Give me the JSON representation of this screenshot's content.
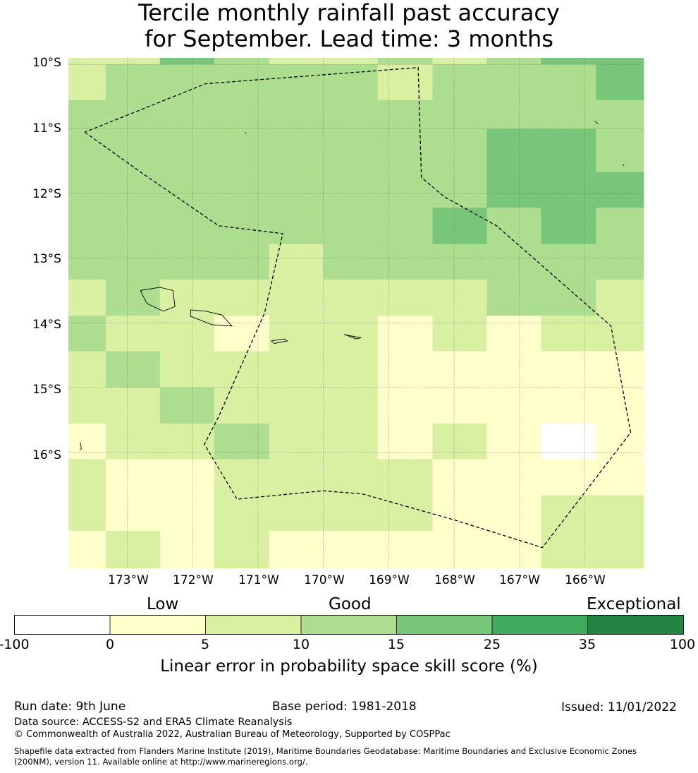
{
  "title": {
    "line1": "Tercile monthly rainfall past accuracy",
    "line2": "for September. Lead time: 3 months"
  },
  "map": {
    "lat_labels": [
      "10°S",
      "11°S",
      "12°S",
      "13°S",
      "14°S",
      "15°S",
      "16°S"
    ],
    "lon_labels": [
      "173°W",
      "172°W",
      "171°W",
      "170°W",
      "169°W",
      "168°W",
      "167°W",
      "166°W"
    ],
    "extent": {
      "lon_min": -173.9,
      "lon_max": -165.1,
      "lat_min": -17.8,
      "lat_max": -9.9
    },
    "grid": {
      "lon_edges": [
        -173.9,
        -173.33,
        -172.5,
        -171.67,
        -170.83,
        -170.0,
        -169.17,
        -168.33,
        -167.5,
        -166.67,
        -165.83,
        -165.1
      ],
      "lat_edges": [
        -9.9,
        -10.0,
        -10.55,
        -11.0,
        -11.67,
        -12.22,
        -12.78,
        -13.33,
        -13.89,
        -14.44,
        -15.0,
        -15.56,
        -16.11,
        -16.67,
        -17.22,
        -17.8
      ],
      "color_classes": [
        [
          2,
          2,
          4,
          3,
          2,
          2,
          3,
          2,
          3,
          4,
          4
        ],
        [
          2,
          3,
          3,
          3,
          3,
          3,
          2,
          3,
          3,
          3,
          4
        ],
        [
          3,
          3,
          3,
          3,
          3,
          3,
          3,
          3,
          3,
          3,
          3
        ],
        [
          3,
          3,
          3,
          3,
          3,
          3,
          3,
          3,
          4,
          4,
          3
        ],
        [
          3,
          3,
          3,
          3,
          3,
          3,
          3,
          3,
          4,
          4,
          4
        ],
        [
          3,
          3,
          3,
          3,
          3,
          3,
          3,
          4,
          3,
          4,
          3
        ],
        [
          3,
          3,
          3,
          3,
          2,
          3,
          3,
          3,
          3,
          3,
          3
        ],
        [
          2,
          3,
          2,
          2,
          2,
          2,
          2,
          2,
          3,
          3,
          2
        ],
        [
          3,
          2,
          2,
          1,
          2,
          2,
          1,
          2,
          1,
          2,
          2
        ],
        [
          2,
          3,
          2,
          2,
          2,
          2,
          1,
          1,
          1,
          1,
          1
        ],
        [
          2,
          2,
          3,
          2,
          2,
          2,
          1,
          1,
          1,
          1,
          1
        ],
        [
          1,
          2,
          2,
          3,
          2,
          2,
          1,
          2,
          1,
          0,
          1
        ],
        [
          2,
          1,
          1,
          2,
          2,
          2,
          2,
          1,
          1,
          1,
          1
        ],
        [
          2,
          1,
          1,
          2,
          2,
          2,
          2,
          1,
          1,
          2,
          2
        ],
        [
          1,
          2,
          1,
          2,
          1,
          1,
          1,
          1,
          1,
          2,
          2
        ]
      ]
    },
    "eez_boundary": [
      [
        -173.65,
        -11.05
      ],
      [
        -172.75,
        -11.7
      ],
      [
        -171.6,
        -12.5
      ],
      [
        -170.62,
        -12.62
      ],
      [
        -170.9,
        -13.85
      ],
      [
        -171.6,
        -15.45
      ],
      [
        -171.82,
        -15.88
      ],
      [
        -171.32,
        -16.73
      ],
      [
        -170.0,
        -16.6
      ],
      [
        -169.4,
        -16.65
      ],
      [
        -168.0,
        -17.05
      ],
      [
        -166.65,
        -17.48
      ],
      [
        -165.3,
        -15.7
      ],
      [
        -165.6,
        -14.05
      ],
      [
        -167.35,
        -12.5
      ],
      [
        -168.15,
        -12.05
      ],
      [
        -168.5,
        -11.75
      ],
      [
        -168.55,
        -10.05
      ],
      [
        -171.8,
        -10.3
      ],
      [
        -173.65,
        -11.05
      ]
    ],
    "islands": [
      [
        [
          -172.8,
          -13.5
        ],
        [
          -172.5,
          -13.45
        ],
        [
          -172.3,
          -13.5
        ],
        [
          -172.27,
          -13.75
        ],
        [
          -172.45,
          -13.82
        ],
        [
          -172.7,
          -13.7
        ],
        [
          -172.8,
          -13.5
        ]
      ],
      [
        [
          -172.03,
          -13.8
        ],
        [
          -171.8,
          -13.82
        ],
        [
          -171.55,
          -13.88
        ],
        [
          -171.4,
          -14.05
        ],
        [
          -171.7,
          -14.03
        ],
        [
          -172.03,
          -13.9
        ],
        [
          -172.03,
          -13.8
        ]
      ],
      [
        [
          -170.8,
          -14.28
        ],
        [
          -170.6,
          -14.25
        ],
        [
          -170.55,
          -14.28
        ],
        [
          -170.75,
          -14.32
        ],
        [
          -170.8,
          -14.28
        ]
      ],
      [
        [
          -169.68,
          -14.18
        ],
        [
          -169.6,
          -14.2
        ],
        [
          -169.42,
          -14.23
        ],
        [
          -169.5,
          -14.25
        ],
        [
          -169.68,
          -14.18
        ]
      ],
      [
        [
          -171.2,
          -11.05
        ],
        [
          -171.18,
          -11.07
        ]
      ],
      [
        [
          -165.85,
          -10.88
        ],
        [
          -165.8,
          -10.92
        ]
      ],
      [
        [
          -165.42,
          -11.55
        ],
        [
          -165.4,
          -11.57
        ]
      ],
      [
        [
          -173.72,
          -15.85
        ],
        [
          -173.7,
          -15.95
        ],
        [
          -173.73,
          -15.97
        ]
      ]
    ]
  },
  "colorbar": {
    "colors": [
      "#ffffff",
      "#ffffcc",
      "#d9f0a3",
      "#addd8e",
      "#78c679",
      "#41ab5d",
      "#238443"
    ],
    "ticks": [
      "-100",
      "0",
      "5",
      "10",
      "15",
      "25",
      "35",
      "100"
    ],
    "tiers": [
      "Low",
      "Good",
      "Exceptional"
    ],
    "label": "Linear error in probability space skill score (%)"
  },
  "footer": {
    "run_date": "Run date: 9th June",
    "base_period": "Base period: 1981-2018",
    "issued": "Issued: 11/01/2022",
    "data_source": "Data source: ACCESS-S2 and ERA5 Climate Reanalysis",
    "copyright": "© Commonwealth of Australia 2022, Australian Bureau of Meteorology, Supported by COSPPac",
    "shapefile_line1": "Shapefile data extracted from Flanders Marine Institute (2019), Maritime Boundaries Geodatabase: Maritime Boundaries and Exclusive Economic Zones",
    "shapefile_line2": "(200NM), version 11. Available online at http://www.marineregions.org/."
  }
}
